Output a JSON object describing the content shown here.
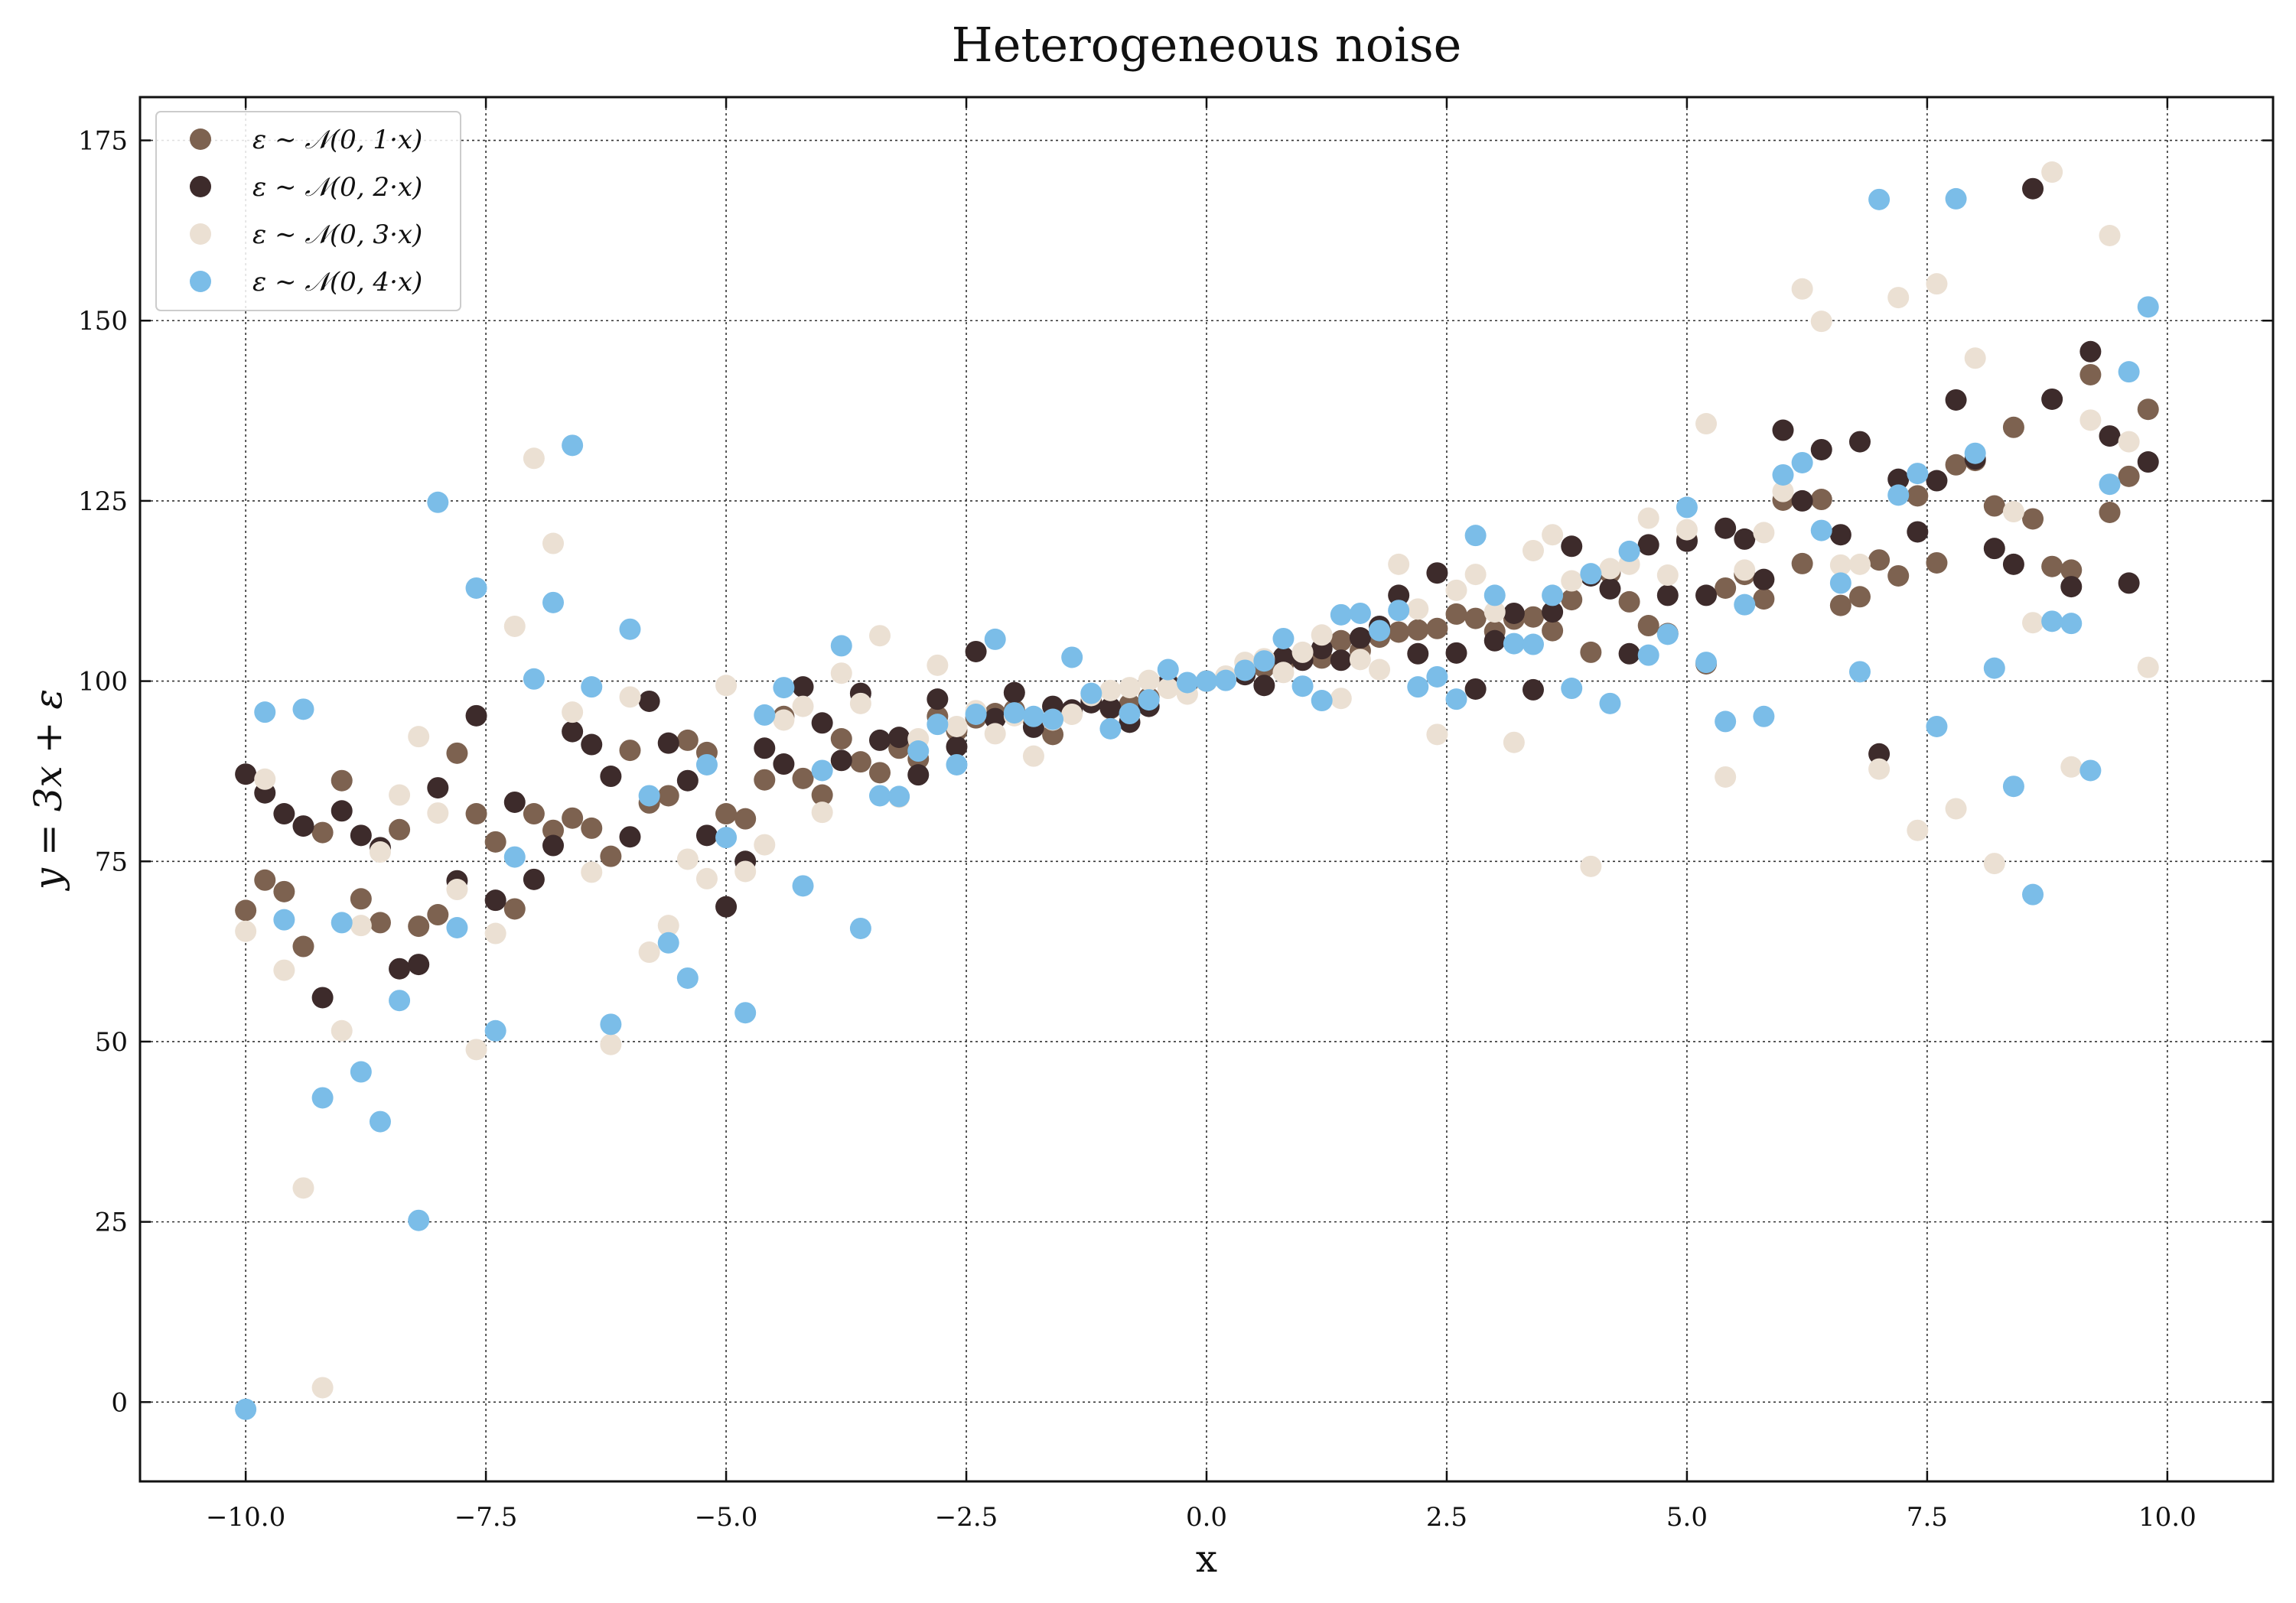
{
  "chart_data": {
    "type": "scatter",
    "title": "Heterogeneous noise",
    "xlabel": "x",
    "ylabel": "y = 3x + ε",
    "xlim": [
      -11.1,
      11.1
    ],
    "ylim": [
      -11,
      181
    ],
    "xticks": [
      -10,
      -7.5,
      -5,
      -2.5,
      0,
      2.5,
      5,
      7.5,
      10
    ],
    "xtick_labels": [
      "−10.0",
      "−7.5",
      "−5.0",
      "−2.5",
      "0.0",
      "2.5",
      "5.0",
      "7.5",
      "10.0"
    ],
    "yticks": [
      0,
      25,
      50,
      75,
      100,
      125,
      150,
      175
    ],
    "ytick_labels": [
      "0",
      "25",
      "50",
      "75",
      "100",
      "125",
      "150",
      "175"
    ],
    "grid": true,
    "legend_position": "top-left",
    "series": [
      {
        "name": "ε ∼ 𝒩(0, 1·x)",
        "color": "#7d6250",
        "x": [
          -10.0,
          -9.8,
          -9.6,
          -9.4,
          -9.2,
          -9.0,
          -8.8,
          -8.6,
          -8.4,
          -8.2,
          -8.0,
          -7.8,
          -7.6,
          -7.4,
          -7.2,
          -7.0,
          -6.8,
          -6.6,
          -6.4,
          -6.2,
          -6.0,
          -5.8,
          -5.6,
          -5.4,
          -5.2,
          -5.0,
          -4.8,
          -4.6,
          -4.4,
          -4.2,
          -4.0,
          -3.8,
          -3.6,
          -3.4,
          -3.2,
          -3.0,
          -2.8,
          -2.6,
          -2.4,
          -2.2,
          -2.0,
          -1.8,
          -1.6,
          -1.4,
          -1.2,
          -1.0,
          -0.8,
          -0.6,
          -0.4,
          -0.2,
          0.0,
          0.2,
          0.4,
          0.6,
          0.8,
          1.0,
          1.2,
          1.4,
          1.6,
          1.8,
          2.0,
          2.2,
          2.4,
          2.6,
          2.8,
          3.0,
          3.2,
          3.4,
          3.6,
          3.8,
          4.0,
          4.2,
          4.4,
          4.6,
          4.8,
          5.0,
          5.2,
          5.4,
          5.6,
          5.8,
          6.0,
          6.2,
          6.4,
          6.6,
          6.8,
          7.0,
          7.2,
          7.4,
          7.6,
          7.8,
          8.0,
          8.2,
          8.4,
          8.6,
          8.8,
          9.0,
          9.2,
          9.4,
          9.6,
          9.8
        ],
        "y": [
          68.2,
          72.4,
          70.8,
          63.2,
          79.0,
          86.2,
          69.8,
          66.5,
          79.4,
          66.0,
          67.6,
          90.0,
          81.6,
          77.7,
          68.4,
          81.6,
          79.3,
          81.0,
          79.6,
          75.7,
          90.4,
          83.1,
          84.1,
          91.8,
          90.1,
          81.6,
          80.9,
          86.3,
          95.1,
          86.5,
          84.2,
          92.0,
          88.8,
          87.3,
          90.7,
          89.2,
          95.1,
          93.1,
          94.9,
          95.5,
          96.0,
          94.4,
          92.6,
          95.6,
          97.2,
          96.2,
          96.8,
          97.7,
          99.7,
          99.6,
          100.0,
          100.4,
          100.9,
          101.9,
          102.4,
          103.7,
          103.2,
          105.6,
          104.2,
          106.1,
          106.8,
          107.1,
          107.3,
          109.3,
          108.7,
          106.9,
          108.6,
          108.9,
          107.0,
          111.3,
          104.0,
          115.0,
          111.0,
          107.7,
          106.6,
          119.6,
          102.4,
          112.9,
          114.8,
          111.4,
          125.1,
          116.3,
          125.2,
          110.5,
          111.7,
          116.8,
          114.6,
          125.7,
          116.4,
          130.0,
          130.6,
          124.3,
          135.2,
          122.5,
          115.9,
          115.4,
          142.5,
          123.4,
          128.4,
          137.7
        ]
      },
      {
        "name": "ε ∼ 𝒩(0, 2·x)",
        "color": "#3d2b2b",
        "x": [
          -10.0,
          -9.8,
          -9.6,
          -9.4,
          -9.2,
          -9.0,
          -8.8,
          -8.6,
          -8.4,
          -8.2,
          -8.0,
          -7.8,
          -7.6,
          -7.4,
          -7.2,
          -7.0,
          -6.8,
          -6.6,
          -6.4,
          -6.2,
          -6.0,
          -5.8,
          -5.6,
          -5.4,
          -5.2,
          -5.0,
          -4.8,
          -4.6,
          -4.4,
          -4.2,
          -4.0,
          -3.8,
          -3.6,
          -3.4,
          -3.2,
          -3.0,
          -2.8,
          -2.6,
          -2.4,
          -2.2,
          -2.0,
          -1.8,
          -1.6,
          -1.4,
          -1.2,
          -1.0,
          -0.8,
          -0.6,
          -0.4,
          -0.2,
          0.0,
          0.2,
          0.4,
          0.6,
          0.8,
          1.0,
          1.2,
          1.4,
          1.6,
          1.8,
          2.0,
          2.2,
          2.4,
          2.6,
          2.8,
          3.0,
          3.2,
          3.4,
          3.6,
          3.8,
          4.0,
          4.2,
          4.4,
          4.6,
          4.8,
          5.0,
          5.2,
          5.4,
          5.6,
          5.8,
          6.0,
          6.2,
          6.4,
          6.6,
          6.8,
          7.0,
          7.2,
          7.4,
          7.6,
          7.8,
          8.0,
          8.2,
          8.4,
          8.6,
          8.8,
          9.0,
          9.2,
          9.4,
          9.6,
          9.8
        ],
        "y": [
          87.1,
          84.5,
          81.6,
          79.9,
          56.1,
          82.0,
          78.6,
          76.9,
          60.1,
          60.7,
          85.2,
          72.3,
          95.2,
          69.6,
          83.2,
          72.5,
          77.2,
          93.0,
          91.2,
          86.8,
          78.4,
          97.2,
          91.4,
          86.2,
          78.6,
          68.7,
          75.0,
          90.7,
          88.5,
          99.2,
          94.2,
          89.0,
          98.3,
          91.8,
          92.2,
          87.0,
          97.5,
          90.9,
          104.1,
          94.8,
          98.4,
          93.6,
          96.5,
          96.0,
          97.0,
          96.3,
          94.3,
          96.5,
          99.5,
          99.7,
          100.0,
          100.4,
          100.9,
          99.4,
          103.3,
          102.9,
          104.5,
          102.9,
          106.0,
          107.6,
          111.9,
          103.8,
          115.0,
          103.9,
          98.9,
          105.6,
          109.4,
          98.8,
          109.6,
          118.7,
          114.6,
          112.8,
          103.8,
          118.9,
          111.9,
          119.4,
          111.9,
          121.2,
          119.7,
          114.1,
          134.8,
          125.0,
          132.1,
          120.3,
          133.2,
          89.9,
          128.0,
          120.7,
          127.8,
          139.0,
          130.8,
          118.4,
          116.2,
          168.3,
          139.1,
          113.1,
          145.7,
          134.0,
          113.6,
          130.4
        ]
      },
      {
        "name": "ε ∼ 𝒩(0, 3·x)",
        "color": "#ebe0d3",
        "x": [
          -10.0,
          -9.8,
          -9.6,
          -9.4,
          -9.2,
          -9.0,
          -8.8,
          -8.6,
          -8.4,
          -8.2,
          -8.0,
          -7.8,
          -7.6,
          -7.4,
          -7.2,
          -7.0,
          -6.8,
          -6.6,
          -6.4,
          -6.2,
          -6.0,
          -5.8,
          -5.6,
          -5.4,
          -5.2,
          -5.0,
          -4.8,
          -4.6,
          -4.4,
          -4.2,
          -4.0,
          -3.8,
          -3.6,
          -3.4,
          -3.2,
          -3.0,
          -2.8,
          -2.6,
          -2.4,
          -2.2,
          -2.0,
          -1.8,
          -1.6,
          -1.4,
          -1.2,
          -1.0,
          -0.8,
          -0.6,
          -0.4,
          -0.2,
          0.0,
          0.2,
          0.4,
          0.6,
          0.8,
          1.0,
          1.2,
          1.4,
          1.6,
          1.8,
          2.0,
          2.2,
          2.4,
          2.6,
          2.8,
          3.0,
          3.2,
          3.4,
          3.6,
          3.8,
          4.0,
          4.2,
          4.4,
          4.6,
          4.8,
          5.0,
          5.2,
          5.4,
          5.6,
          5.8,
          6.0,
          6.2,
          6.4,
          6.6,
          6.8,
          7.0,
          7.2,
          7.4,
          7.6,
          7.8,
          8.0,
          8.2,
          8.4,
          8.6,
          8.8,
          9.0,
          9.2,
          9.4,
          9.6,
          9.8
        ],
        "y": [
          65.3,
          86.4,
          59.9,
          29.7,
          2.0,
          51.5,
          66.1,
          76.3,
          84.2,
          92.3,
          81.7,
          71.1,
          48.9,
          65.0,
          107.6,
          130.9,
          119.1,
          95.7,
          73.5,
          49.6,
          97.8,
          62.4,
          66.1,
          75.3,
          72.6,
          99.4,
          73.6,
          77.3,
          94.6,
          96.5,
          81.8,
          101.1,
          96.9,
          106.3,
          83.9,
          92.0,
          102.2,
          93.7,
          95.9,
          92.7,
          95.2,
          89.6,
          94.6,
          95.4,
          98.0,
          98.7,
          99.1,
          100.1,
          99.0,
          98.2,
          100.0,
          100.7,
          102.6,
          103.1,
          101.2,
          104.0,
          106.4,
          97.6,
          103.0,
          101.6,
          116.2,
          110.0,
          92.6,
          112.6,
          114.8,
          109.6,
          91.5,
          118.1,
          120.3,
          113.9,
          74.3,
          115.6,
          116.2,
          122.6,
          114.7,
          121.0,
          135.7,
          86.7,
          115.4,
          120.6,
          126.3,
          154.4,
          149.9,
          116.1,
          116.2,
          87.8,
          153.2,
          79.3,
          155.1,
          82.3,
          144.8,
          74.7,
          123.5,
          108.1,
          170.6,
          88.1,
          136.2,
          161.8,
          133.2,
          101.9
        ]
      },
      {
        "name": "ε ∼ 𝒩(0, 4·x)",
        "color": "#7bbde8",
        "x": [
          -10.0,
          -9.8,
          -9.6,
          -9.4,
          -9.2,
          -9.0,
          -8.8,
          -8.6,
          -8.4,
          -8.2,
          -8.0,
          -7.8,
          -7.6,
          -7.4,
          -7.2,
          -7.0,
          -6.8,
          -6.6,
          -6.4,
          -6.2,
          -6.0,
          -5.8,
          -5.6,
          -5.4,
          -5.2,
          -5.0,
          -4.8,
          -4.6,
          -4.4,
          -4.2,
          -4.0,
          -3.8,
          -3.6,
          -3.4,
          -3.2,
          -3.0,
          -2.8,
          -2.6,
          -2.4,
          -2.2,
          -2.0,
          -1.8,
          -1.6,
          -1.4,
          -1.2,
          -1.0,
          -0.8,
          -0.6,
          -0.4,
          -0.2,
          0.0,
          0.2,
          0.4,
          0.6,
          0.8,
          1.0,
          1.2,
          1.4,
          1.6,
          1.8,
          2.0,
          2.2,
          2.4,
          2.6,
          2.8,
          3.0,
          3.2,
          3.4,
          3.6,
          3.8,
          4.0,
          4.2,
          4.4,
          4.6,
          4.8,
          5.0,
          5.2,
          5.4,
          5.6,
          5.8,
          6.0,
          6.2,
          6.4,
          6.6,
          6.8,
          7.0,
          7.2,
          7.4,
          7.6,
          7.8,
          8.0,
          8.2,
          8.4,
          8.6,
          8.8,
          9.0,
          9.2,
          9.4,
          9.6,
          9.8
        ],
        "y": [
          -1.0,
          95.7,
          66.9,
          96.1,
          42.2,
          66.5,
          45.8,
          38.9,
          55.7,
          25.2,
          124.8,
          65.8,
          112.9,
          51.5,
          75.6,
          100.3,
          110.9,
          132.7,
          99.2,
          52.4,
          107.2,
          84.1,
          63.7,
          58.8,
          88.4,
          78.3,
          54.0,
          95.3,
          99.1,
          71.6,
          87.6,
          104.9,
          65.7,
          84.1,
          84.0,
          90.3,
          94.0,
          88.4,
          95.4,
          105.8,
          95.6,
          95.1,
          94.7,
          103.3,
          98.3,
          93.4,
          95.5,
          97.4,
          101.6,
          99.8,
          100.0,
          100.1,
          101.5,
          102.8,
          105.9,
          99.3,
          97.3,
          109.2,
          109.4,
          107.0,
          109.8,
          99.2,
          100.6,
          97.5,
          120.2,
          111.9,
          105.2,
          105.1,
          111.9,
          99.0,
          114.9,
          96.9,
          118.0,
          103.6,
          106.5,
          124.1,
          102.6,
          94.4,
          110.6,
          95.1,
          128.6,
          130.3,
          120.9,
          113.6,
          101.3,
          166.8,
          125.8,
          128.8,
          93.7,
          166.9,
          131.6,
          101.8,
          85.4,
          70.4,
          108.3,
          108.0,
          87.6,
          127.3,
          142.9,
          151.9
        ]
      }
    ]
  }
}
